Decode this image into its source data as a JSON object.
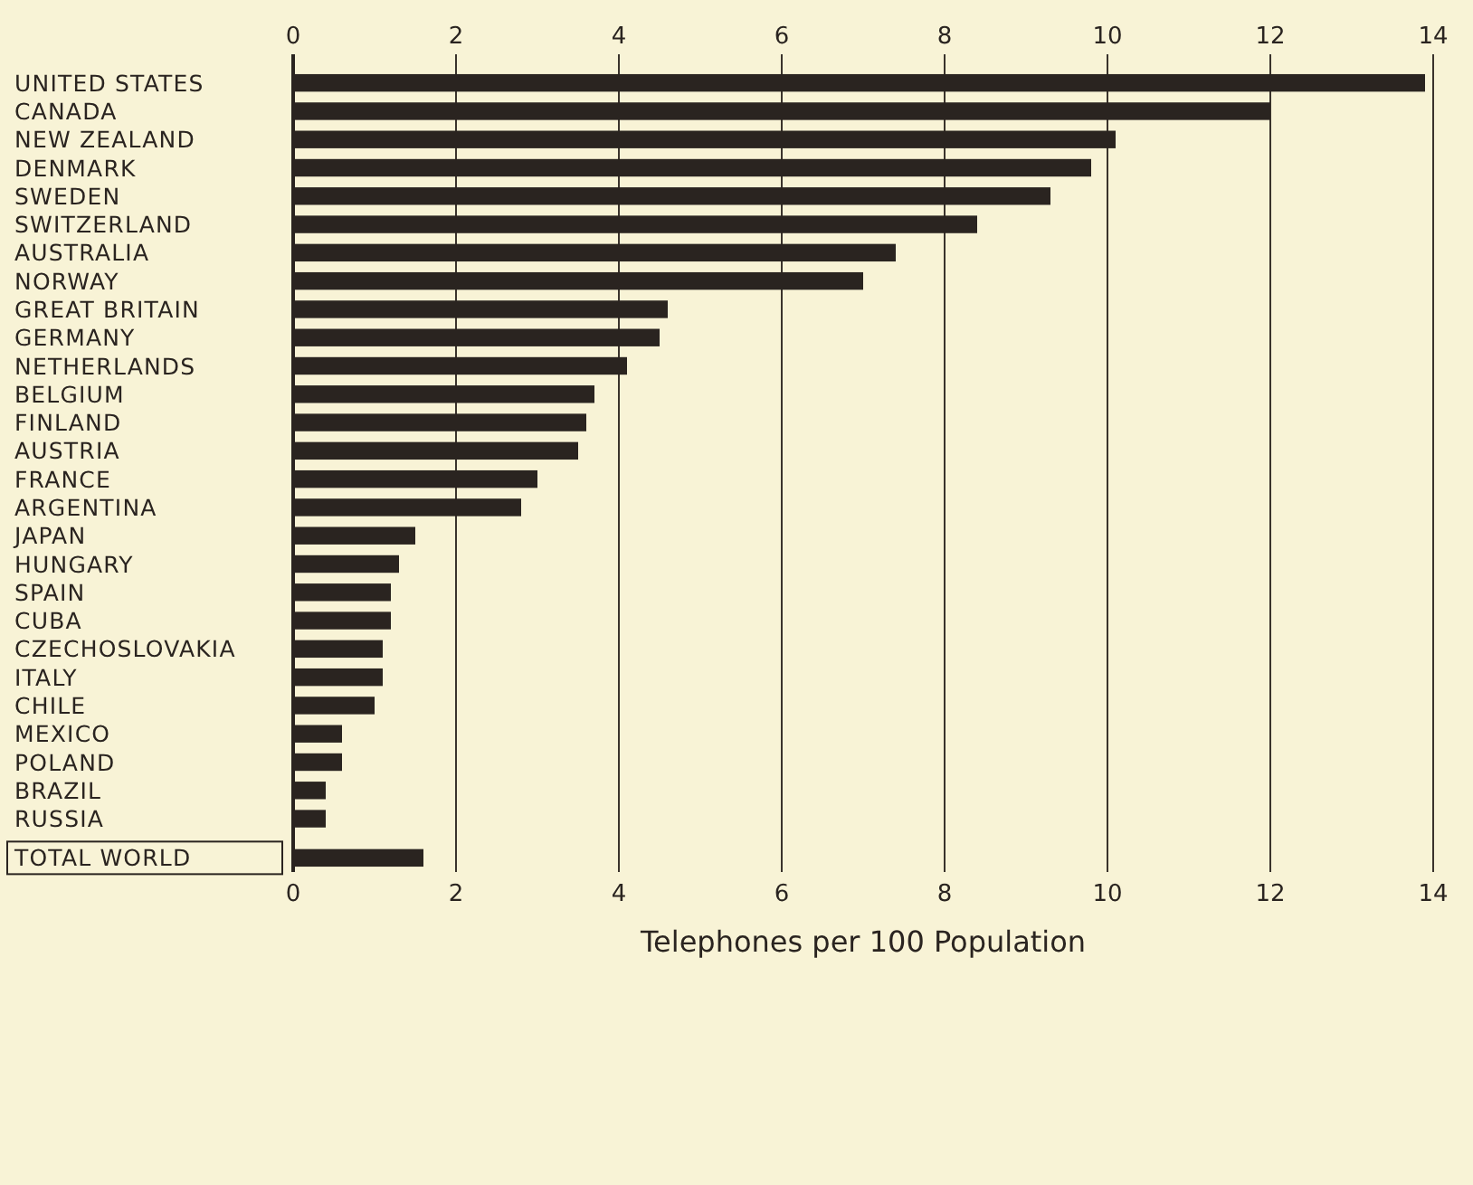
{
  "chart_data": {
    "type": "bar",
    "orientation": "horizontal",
    "xlabel": "Telephones per 100 Population",
    "categories": [
      "UNITED STATES",
      "CANADA",
      "NEW ZEALAND",
      "DENMARK",
      "SWEDEN",
      "SWITZERLAND",
      "AUSTRALIA",
      "NORWAY",
      "GREAT BRITAIN",
      "GERMANY",
      "NETHERLANDS",
      "BELGIUM",
      "FINLAND",
      "AUSTRIA",
      "FRANCE",
      "ARGENTINA",
      "JAPAN",
      "HUNGARY",
      "SPAIN",
      "CUBA",
      "CZECHOSLOVAKIA",
      "ITALY",
      "CHILE",
      "MEXICO",
      "POLAND",
      "BRAZIL",
      "RUSSIA",
      "TOTAL WORLD"
    ],
    "values": [
      13.9,
      12.0,
      10.1,
      9.8,
      9.3,
      8.4,
      7.4,
      7.0,
      4.6,
      4.5,
      4.1,
      3.7,
      3.6,
      3.5,
      3.0,
      2.8,
      1.5,
      1.3,
      1.2,
      1.2,
      1.1,
      1.1,
      1.0,
      0.6,
      0.6,
      0.4,
      0.4,
      1.6
    ],
    "color": "#2a2420",
    "xlim": [
      0,
      14
    ],
    "xticks": [
      0,
      2,
      4,
      6,
      8,
      10,
      12,
      14
    ],
    "x2lim": [
      0,
      14
    ],
    "x2ticks": [
      0,
      2,
      4,
      6,
      8,
      10,
      12,
      14
    ],
    "grid": "x"
  }
}
